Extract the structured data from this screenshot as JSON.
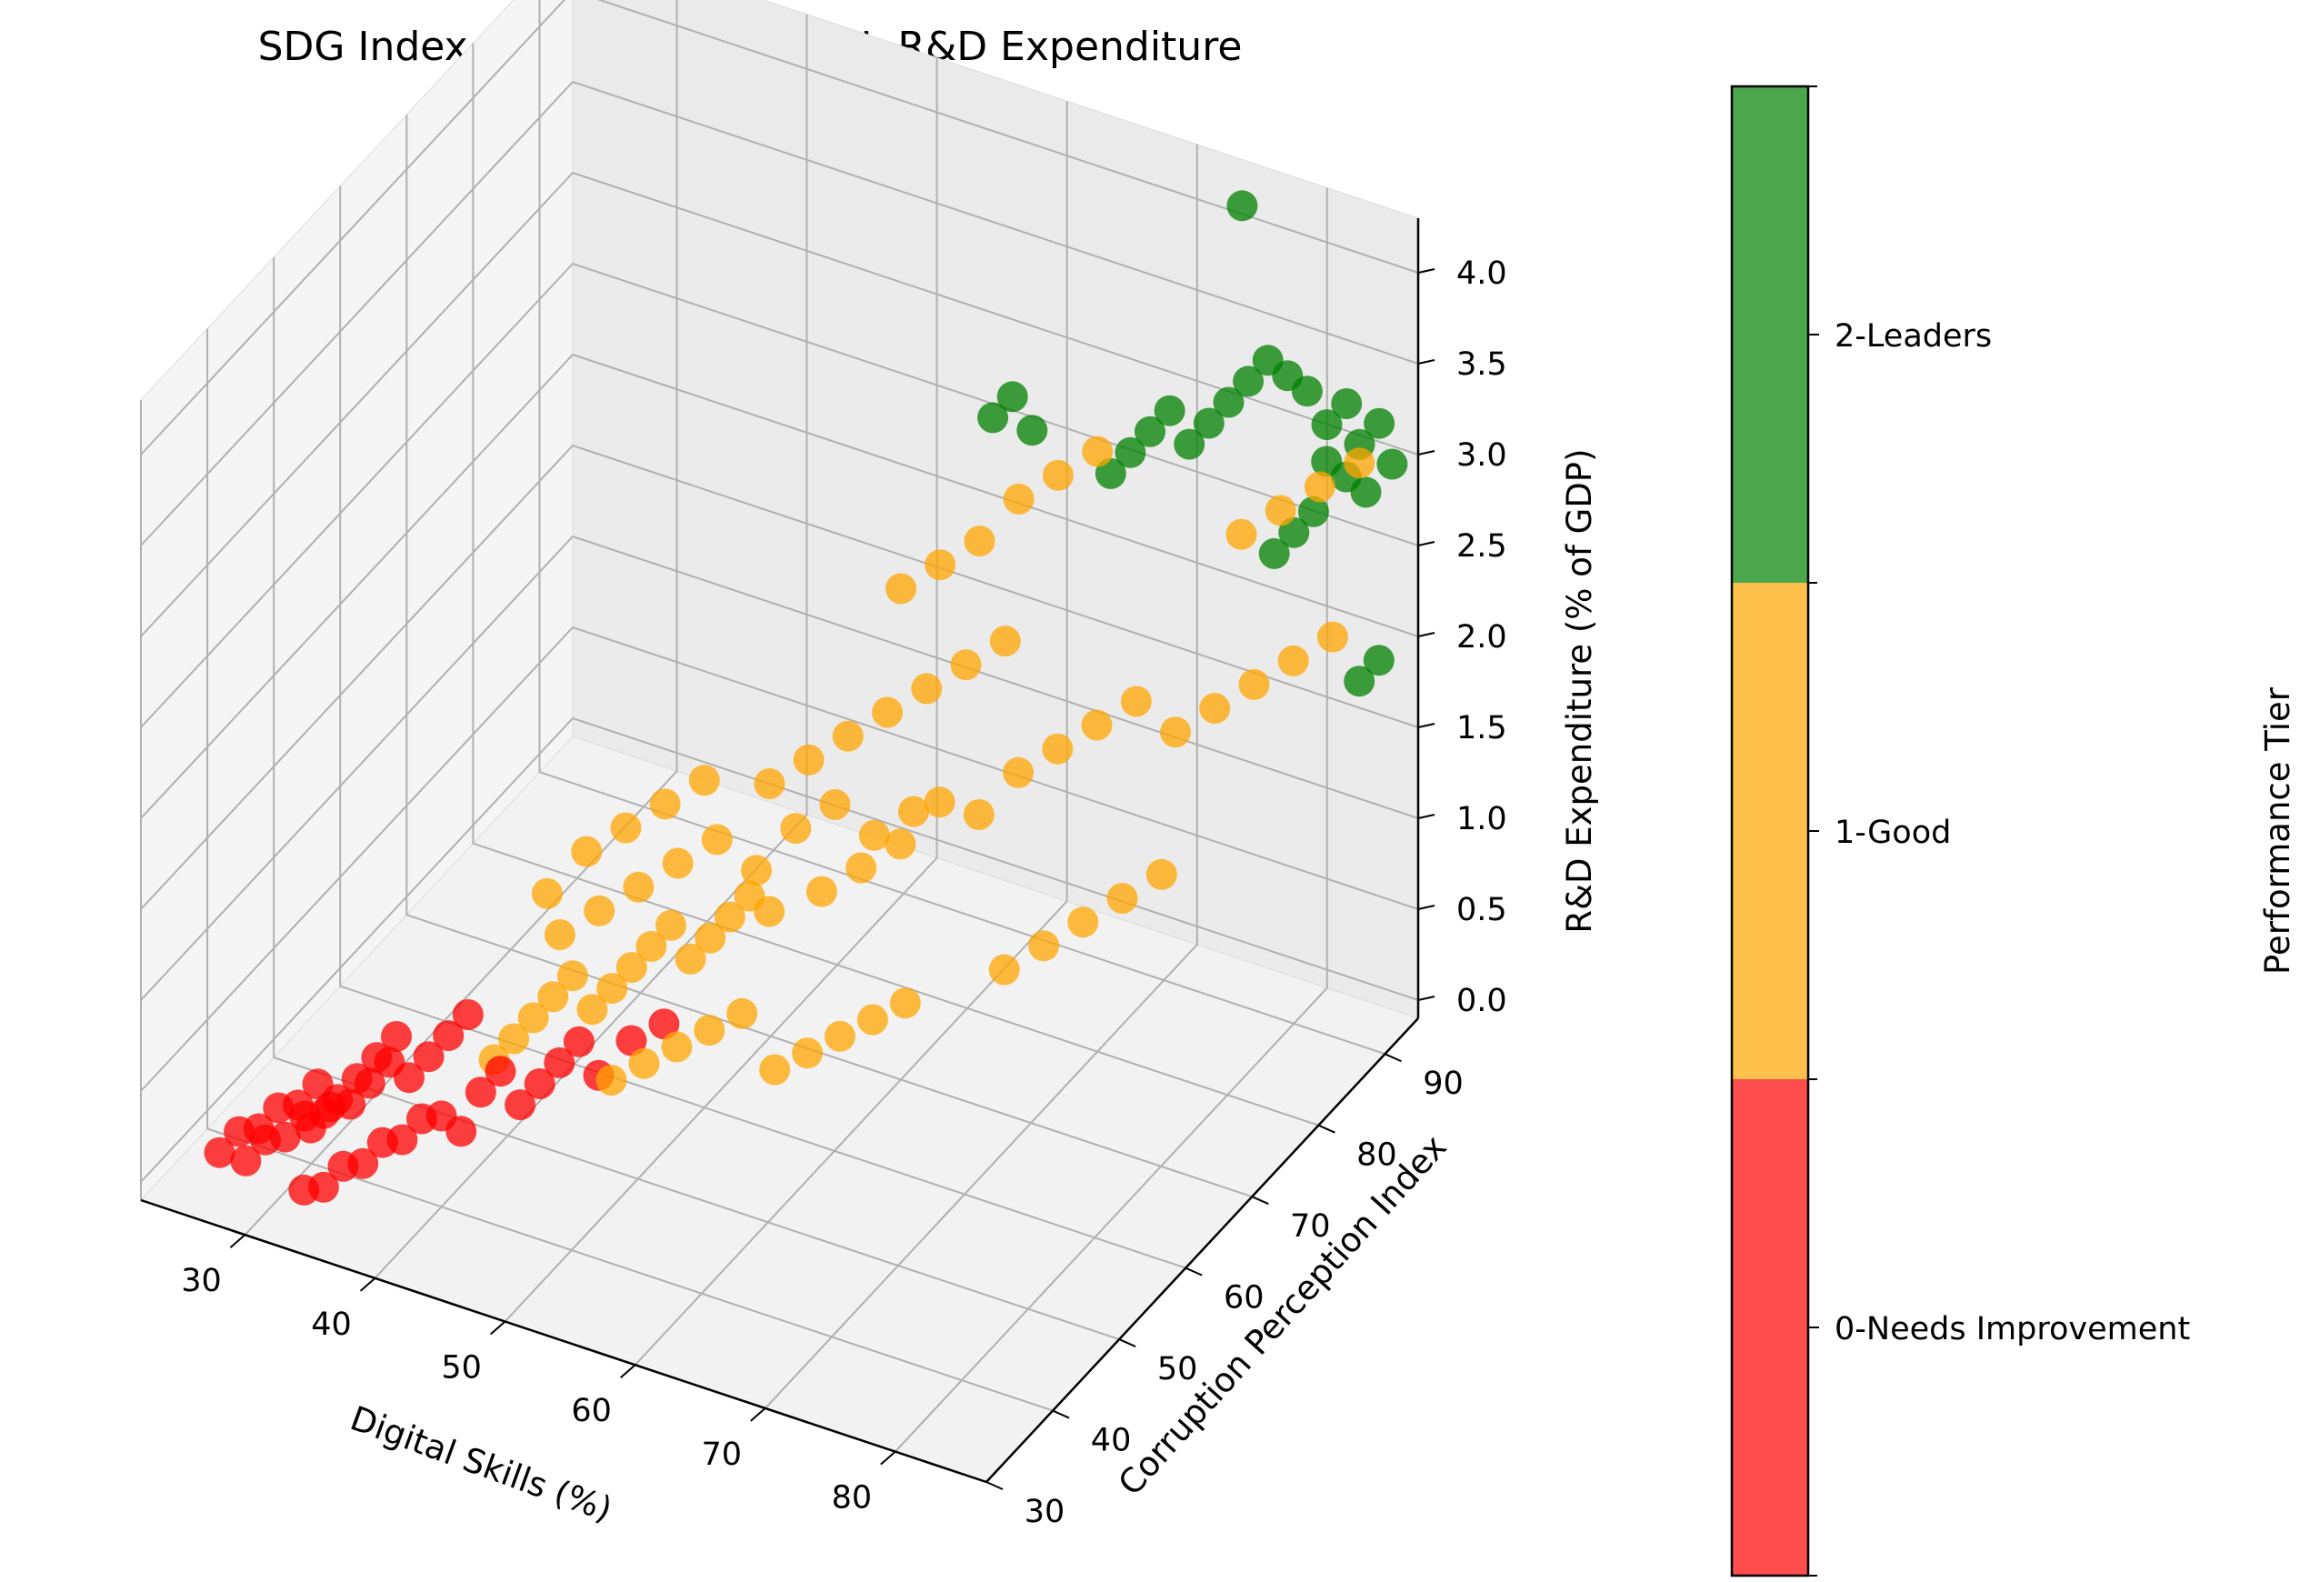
{
  "chart_data": {
    "type": "scatter",
    "projection": "3d",
    "title": "SDG Index vs Digital Skills, CPI, R&D Expenditure",
    "xlabel": "Digital Skills (%)",
    "ylabel": "Corruption Perception Index",
    "zlabel": "R&D Expenditure (% of GDP)",
    "xlim": [
      22,
      87
    ],
    "ylim": [
      30,
      95
    ],
    "zlim": [
      -0.1,
      4.3
    ],
    "xticks": [
      "30",
      "40",
      "50",
      "60",
      "70",
      "80"
    ],
    "yticks": [
      "30",
      "40",
      "50",
      "60",
      "70",
      "80",
      "90"
    ],
    "zticks": [
      "0.0",
      "0.5",
      "1.0",
      "1.5",
      "2.0",
      "2.5",
      "3.0",
      "3.5",
      "4.0"
    ],
    "grid": true,
    "colorbar": {
      "label": "Performance Tier",
      "ticks": [
        "0-Needs Improvement",
        "1-Good",
        "2-Leaders"
      ],
      "colors": [
        "#ff0000",
        "#ffa500",
        "#008000"
      ]
    },
    "series": [
      {
        "name": "0-Needs Improvement",
        "color": "#ff0000",
        "points": [
          [
            26,
            34,
            0.1
          ],
          [
            27,
            35,
            0.2
          ],
          [
            28,
            36,
            0.2
          ],
          [
            29,
            37,
            0.3
          ],
          [
            30,
            38,
            0.3
          ],
          [
            31,
            39,
            0.4
          ],
          [
            32,
            40,
            0.3
          ],
          [
            33,
            41,
            0.4
          ],
          [
            34,
            42,
            0.5
          ],
          [
            35,
            43,
            0.6
          ],
          [
            27,
            36,
            0.0
          ],
          [
            28,
            37,
            0.1
          ],
          [
            29,
            38,
            0.1
          ],
          [
            30,
            39,
            0.2
          ],
          [
            31,
            40,
            0.2
          ],
          [
            32,
            36,
            0.3
          ],
          [
            33,
            37,
            0.4
          ],
          [
            34,
            38,
            0.4
          ],
          [
            35,
            39,
            0.5
          ],
          [
            36,
            40,
            0.6
          ],
          [
            37,
            41,
            0.5
          ],
          [
            38,
            42,
            0.6
          ],
          [
            39,
            43,
            0.7
          ],
          [
            40,
            44,
            0.8
          ],
          [
            33,
            33,
            0.1
          ],
          [
            34,
            34,
            0.1
          ],
          [
            35,
            35,
            0.2
          ],
          [
            36,
            36,
            0.2
          ],
          [
            37,
            37,
            0.3
          ],
          [
            38,
            38,
            0.3
          ],
          [
            39,
            39,
            0.4
          ],
          [
            40,
            40,
            0.4
          ],
          [
            41,
            41,
            0.3
          ],
          [
            42,
            42,
            0.5
          ],
          [
            43,
            43,
            0.6
          ],
          [
            44,
            44,
            0.4
          ],
          [
            45,
            45,
            0.5
          ],
          [
            46,
            46,
            0.6
          ],
          [
            47,
            47,
            0.7
          ],
          [
            48,
            48,
            0.5
          ],
          [
            50,
            49,
            0.7
          ],
          [
            52,
            50,
            0.8
          ]
        ]
      },
      {
        "name": "1-Good",
        "color": "#ffa500",
        "points": [
          [
            42,
            44,
            0.6
          ],
          [
            43,
            45,
            0.7
          ],
          [
            44,
            46,
            0.8
          ],
          [
            45,
            47,
            0.9
          ],
          [
            46,
            48,
            1.0
          ],
          [
            47,
            49,
            0.8
          ],
          [
            48,
            50,
            0.9
          ],
          [
            49,
            51,
            1.0
          ],
          [
            50,
            52,
            1.1
          ],
          [
            51,
            53,
            1.2
          ],
          [
            52,
            54,
            1.0
          ],
          [
            53,
            55,
            1.1
          ],
          [
            54,
            56,
            1.2
          ],
          [
            55,
            57,
            1.3
          ],
          [
            56,
            58,
            1.2
          ],
          [
            44,
            50,
            1.1
          ],
          [
            46,
            52,
            1.2
          ],
          [
            48,
            54,
            1.3
          ],
          [
            50,
            56,
            1.4
          ],
          [
            52,
            58,
            1.5
          ],
          [
            54,
            60,
            1.3
          ],
          [
            56,
            62,
            1.5
          ],
          [
            58,
            64,
            1.6
          ],
          [
            60,
            66,
            1.4
          ],
          [
            62,
            68,
            1.5
          ],
          [
            50,
            46,
            0.6
          ],
          [
            52,
            47,
            0.7
          ],
          [
            54,
            48,
            0.8
          ],
          [
            56,
            49,
            0.9
          ],
          [
            58,
            50,
            1.0
          ],
          [
            60,
            51,
            0.7
          ],
          [
            62,
            52,
            0.8
          ],
          [
            64,
            53,
            0.9
          ],
          [
            66,
            54,
            1.0
          ],
          [
            68,
            55,
            1.1
          ],
          [
            55,
            60,
            1.8
          ],
          [
            57,
            62,
            1.9
          ],
          [
            59,
            64,
            2.0
          ],
          [
            61,
            66,
            2.1
          ],
          [
            63,
            68,
            2.2
          ],
          [
            65,
            70,
            2.3
          ],
          [
            67,
            72,
            2.4
          ],
          [
            60,
            70,
            2.6
          ],
          [
            62,
            72,
            2.7
          ],
          [
            64,
            74,
            2.8
          ],
          [
            66,
            76,
            3.0
          ],
          [
            68,
            78,
            3.1
          ],
          [
            70,
            80,
            3.2
          ],
          [
            58,
            62,
            1.2
          ],
          [
            60,
            64,
            1.3
          ],
          [
            62,
            66,
            1.4
          ],
          [
            64,
            68,
            1.6
          ],
          [
            66,
            70,
            1.5
          ],
          [
            68,
            72,
            1.7
          ],
          [
            70,
            74,
            1.8
          ],
          [
            72,
            76,
            1.9
          ],
          [
            74,
            78,
            2.0
          ],
          [
            70,
            66,
            0.9
          ],
          [
            72,
            68,
            1.0
          ],
          [
            74,
            70,
            1.1
          ],
          [
            76,
            72,
            1.2
          ],
          [
            78,
            74,
            1.3
          ],
          [
            76,
            80,
            1.8
          ],
          [
            78,
            82,
            1.9
          ],
          [
            80,
            84,
            2.0
          ],
          [
            82,
            86,
            2.1
          ],
          [
            84,
            88,
            2.2
          ],
          [
            78,
            86,
            2.7
          ],
          [
            80,
            88,
            2.8
          ],
          [
            82,
            90,
            2.9
          ],
          [
            84,
            92,
            3.0
          ],
          [
            48,
            58,
            1.6
          ],
          [
            50,
            60,
            1.7
          ],
          [
            46,
            56,
            1.5
          ],
          [
            44,
            54,
            1.4
          ],
          [
            42,
            52,
            1.2
          ]
        ]
      },
      {
        "name": "2-Leaders",
        "color": "#008000",
        "points": [
          [
            64,
            76,
            3.4
          ],
          [
            65,
            77,
            3.5
          ],
          [
            66,
            78,
            3.3
          ],
          [
            70,
            82,
            3.0
          ],
          [
            71,
            83,
            3.1
          ],
          [
            72,
            84,
            3.2
          ],
          [
            73,
            85,
            3.3
          ],
          [
            74,
            86,
            3.1
          ],
          [
            75,
            87,
            3.2
          ],
          [
            76,
            88,
            3.3
          ],
          [
            77,
            89,
            3.4
          ],
          [
            78,
            90,
            3.5
          ],
          [
            79,
            91,
            3.4
          ],
          [
            80,
            92,
            3.3
          ],
          [
            81,
            93,
            3.1
          ],
          [
            82,
            94,
            3.2
          ],
          [
            83,
            94,
            3.0
          ],
          [
            84,
            95,
            3.1
          ],
          [
            85,
            95,
            2.9
          ],
          [
            84,
            93,
            2.8
          ],
          [
            83,
            92,
            2.9
          ],
          [
            82,
            91,
            3.0
          ],
          [
            80,
            90,
            2.6
          ],
          [
            81,
            91,
            2.7
          ],
          [
            79,
            89,
            2.5
          ],
          [
            75,
            92,
            4.2
          ],
          [
            84,
            92,
            1.8
          ],
          [
            85,
            93,
            1.9
          ]
        ]
      }
    ]
  }
}
